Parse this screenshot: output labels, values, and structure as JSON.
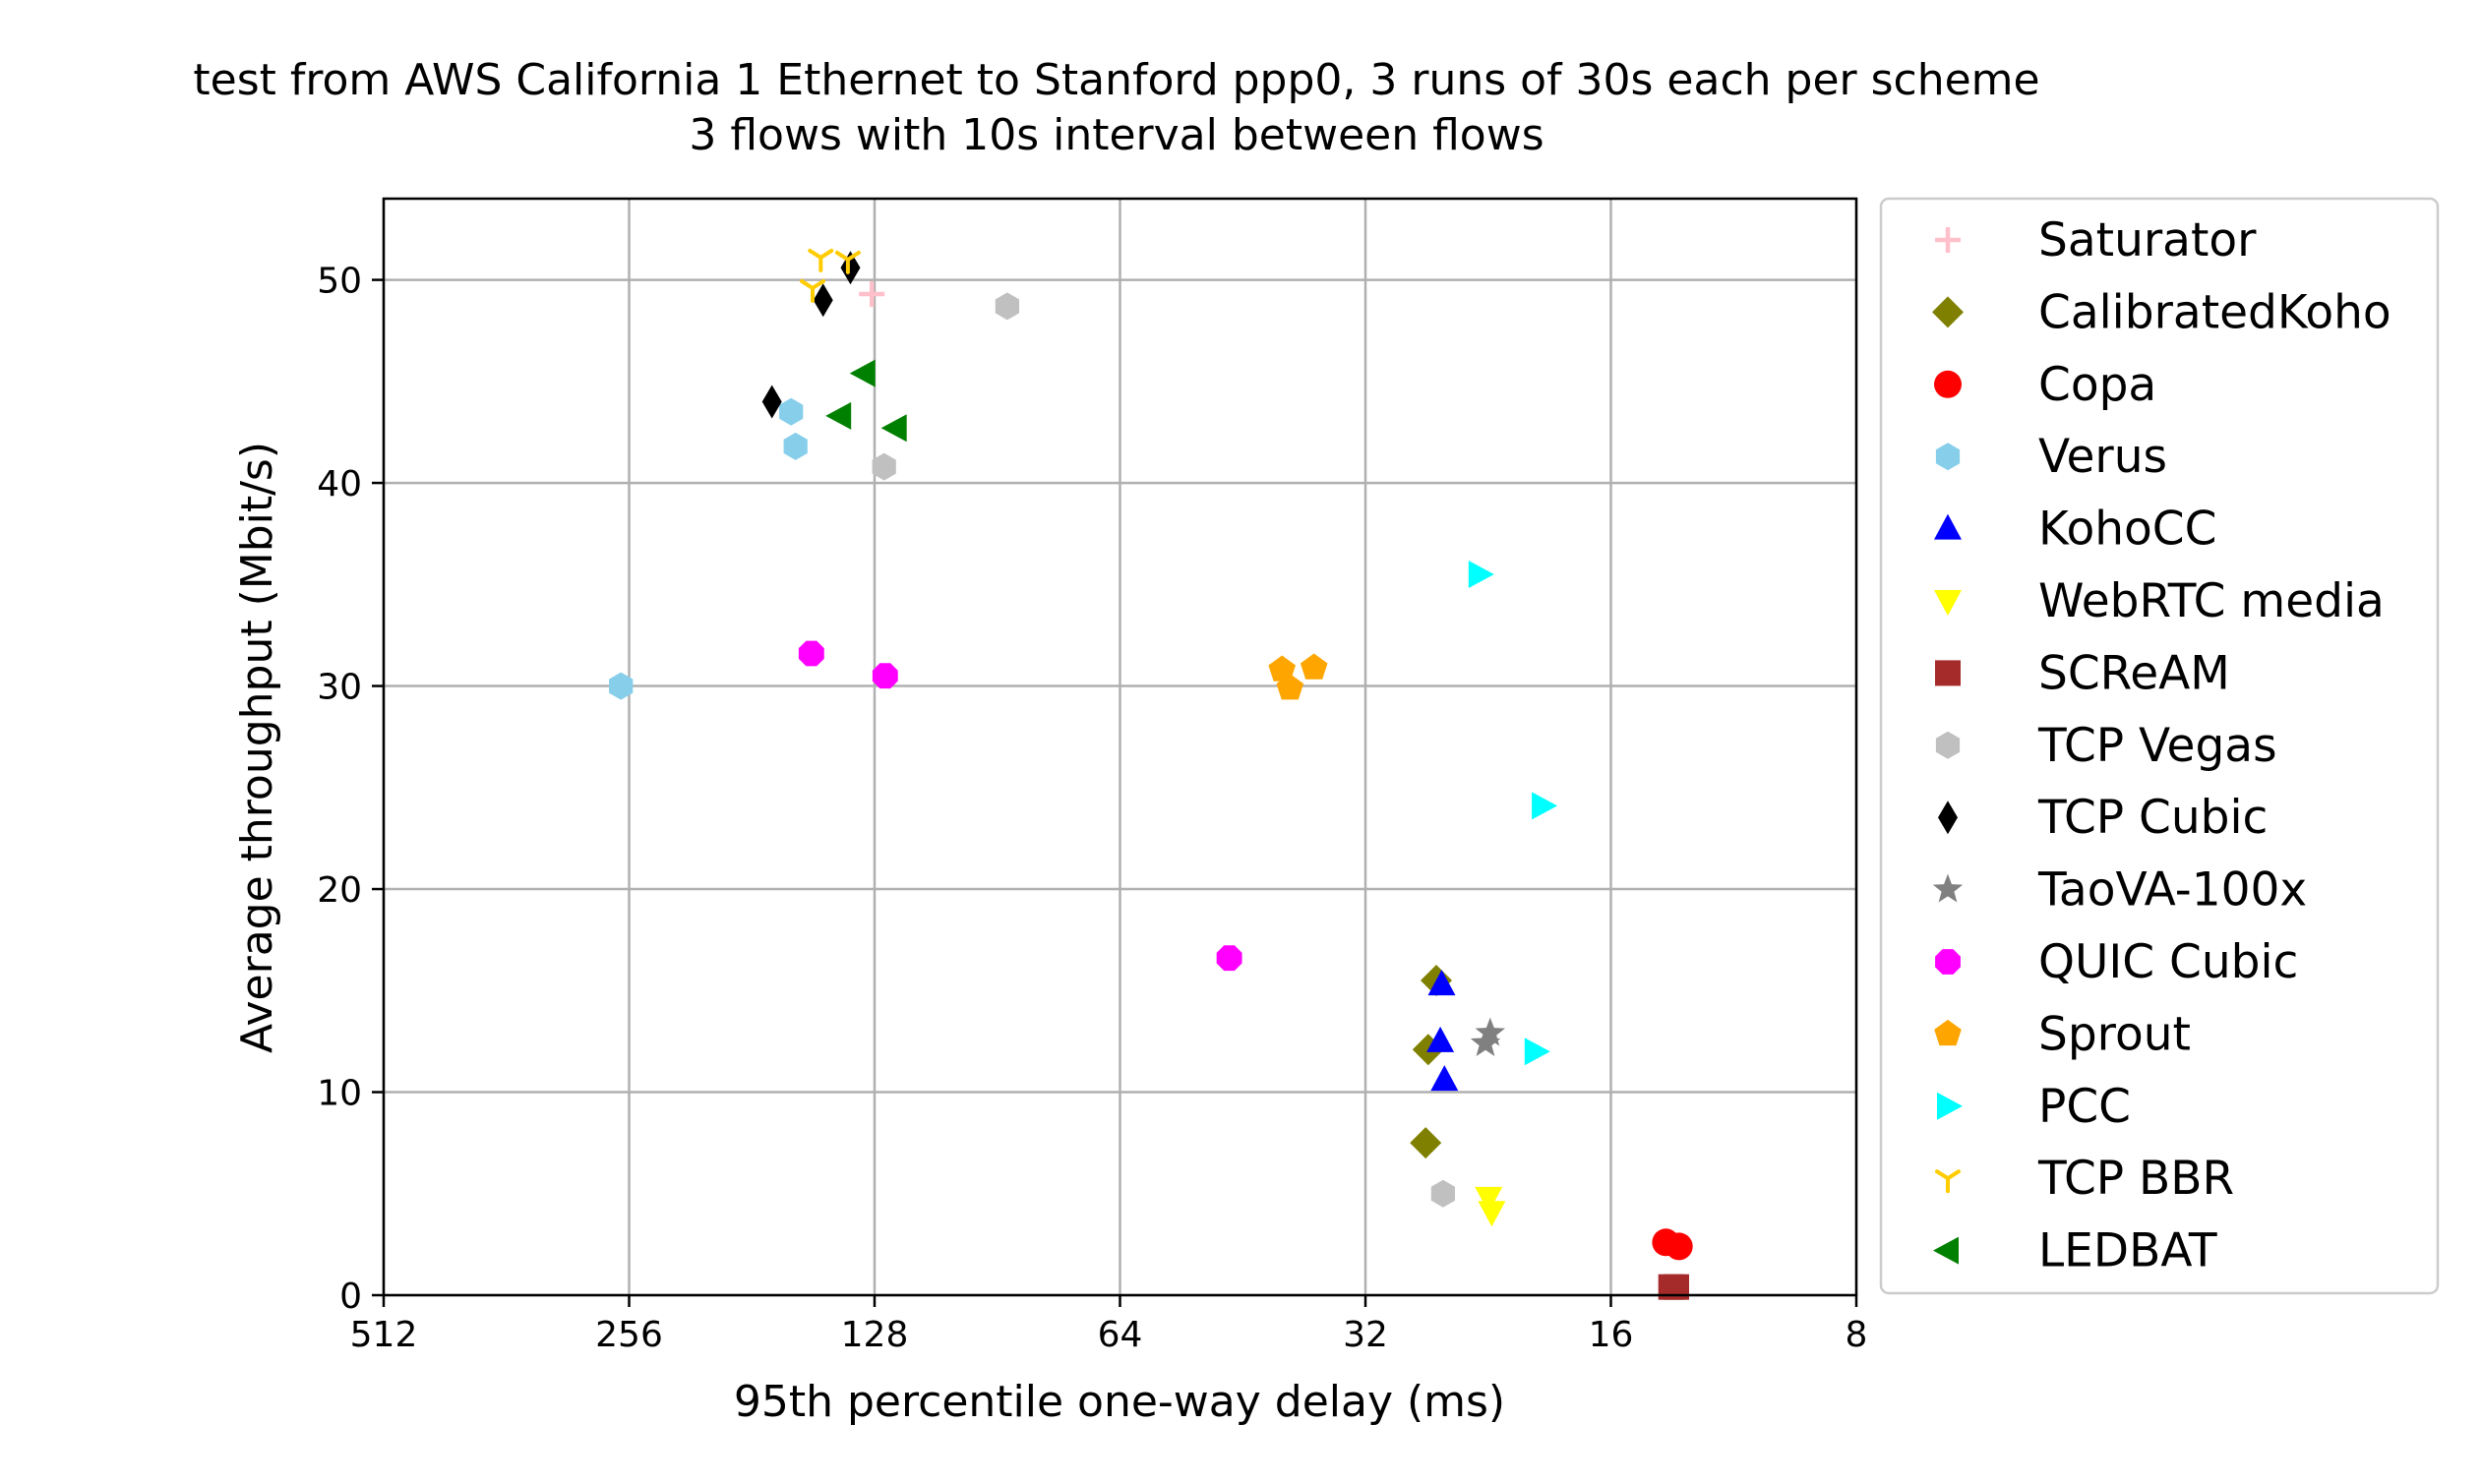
{
  "chart_data": {
    "type": "scatter",
    "title_lines": [
      "test from AWS California 1 Ethernet to Stanford ppp0, 3 runs of 30s each per scheme",
      "3 flows with 10s interval between flows"
    ],
    "xlabel": "95th percentile one-way delay (ms)",
    "ylabel": "Average throughput (Mbit/s)",
    "x_scale": "log2",
    "x_inverted": true,
    "xlim": [
      512,
      8
    ],
    "ylim": [
      0,
      54
    ],
    "x_ticks": [
      512,
      256,
      128,
      64,
      32,
      16,
      8
    ],
    "y_ticks": [
      0,
      10,
      20,
      30,
      40,
      50
    ],
    "grid": true,
    "legend_position": "outside-right",
    "series": [
      {
        "name": "Saturator",
        "color": "#ffc0cb",
        "marker": "plus",
        "points": [
          [
            129,
            49.3
          ]
        ]
      },
      {
        "name": "CalibratedKoho",
        "color": "#808000",
        "marker": "diamond",
        "points": [
          [
            26.2,
            15.5
          ],
          [
            26.8,
            12.1
          ],
          [
            27.0,
            7.5
          ]
        ]
      },
      {
        "name": "Copa",
        "color": "#ff0000",
        "marker": "circle",
        "points": [
          [
            13.7,
            2.6
          ],
          [
            13.2,
            2.4
          ]
        ]
      },
      {
        "name": "Verus",
        "color": "#87ceeb",
        "marker": "hexagon",
        "points": [
          [
            162,
            43.5
          ],
          [
            160,
            41.8
          ],
          [
            262,
            30.0
          ]
        ]
      },
      {
        "name": "KohoCC",
        "color": "#0000ff",
        "marker": "triangle-up",
        "points": [
          [
            25.8,
            15.3
          ],
          [
            25.9,
            12.5
          ],
          [
            25.6,
            10.6
          ]
        ]
      },
      {
        "name": "WebRTC media",
        "color": "#ffff00",
        "marker": "triangle-down",
        "points": [
          [
            22.6,
            4.8
          ],
          [
            22.4,
            4.1
          ]
        ]
      },
      {
        "name": "SCReAM",
        "color": "#a52a2a",
        "marker": "square",
        "points": [
          [
            13.3,
            0.4
          ],
          [
            13.5,
            0.4
          ]
        ]
      },
      {
        "name": "TCP Vegas",
        "color": "#c0c0c0",
        "marker": "hexagon",
        "points": [
          [
            88,
            48.7
          ],
          [
            124.6,
            40.8
          ],
          [
            25.7,
            5.0
          ]
        ]
      },
      {
        "name": "TCP Cubic",
        "color": "#000000",
        "marker": "thin-diamond",
        "points": [
          [
            137,
            50.6
          ],
          [
            148,
            49.0
          ],
          [
            171,
            44.0
          ]
        ]
      },
      {
        "name": "TaoVA-100x",
        "color": "#808080",
        "marker": "star",
        "points": [
          [
            22.5,
            12.9
          ],
          [
            22.8,
            12.4
          ]
        ]
      },
      {
        "name": "QUIC Cubic",
        "color": "#ff00ff",
        "marker": "octagon",
        "points": [
          [
            153,
            31.6
          ],
          [
            124.2,
            30.5
          ],
          [
            47,
            16.6
          ]
        ]
      },
      {
        "name": "Sprout",
        "color": "#ffa500",
        "marker": "pentagon",
        "points": [
          [
            40.5,
            30.8
          ],
          [
            39.6,
            29.9
          ],
          [
            37.0,
            30.9
          ]
        ]
      },
      {
        "name": "PCC",
        "color": "#00ffff",
        "marker": "triangle-right",
        "points": [
          [
            23.2,
            35.5
          ],
          [
            19.4,
            24.1
          ],
          [
            19.8,
            12.0
          ]
        ]
      },
      {
        "name": "TCP BBR",
        "color": "#ffcc00",
        "marker": "tri-down",
        "points": [
          [
            138,
            51.0
          ],
          [
            149,
            51.1
          ],
          [
            152.5,
            49.6
          ]
        ]
      },
      {
        "name": "LEDBAT",
        "color": "#008000",
        "marker": "triangle-left",
        "points": [
          [
            131.7,
            45.4
          ],
          [
            141,
            43.3
          ],
          [
            120.5,
            42.7
          ]
        ]
      }
    ]
  }
}
